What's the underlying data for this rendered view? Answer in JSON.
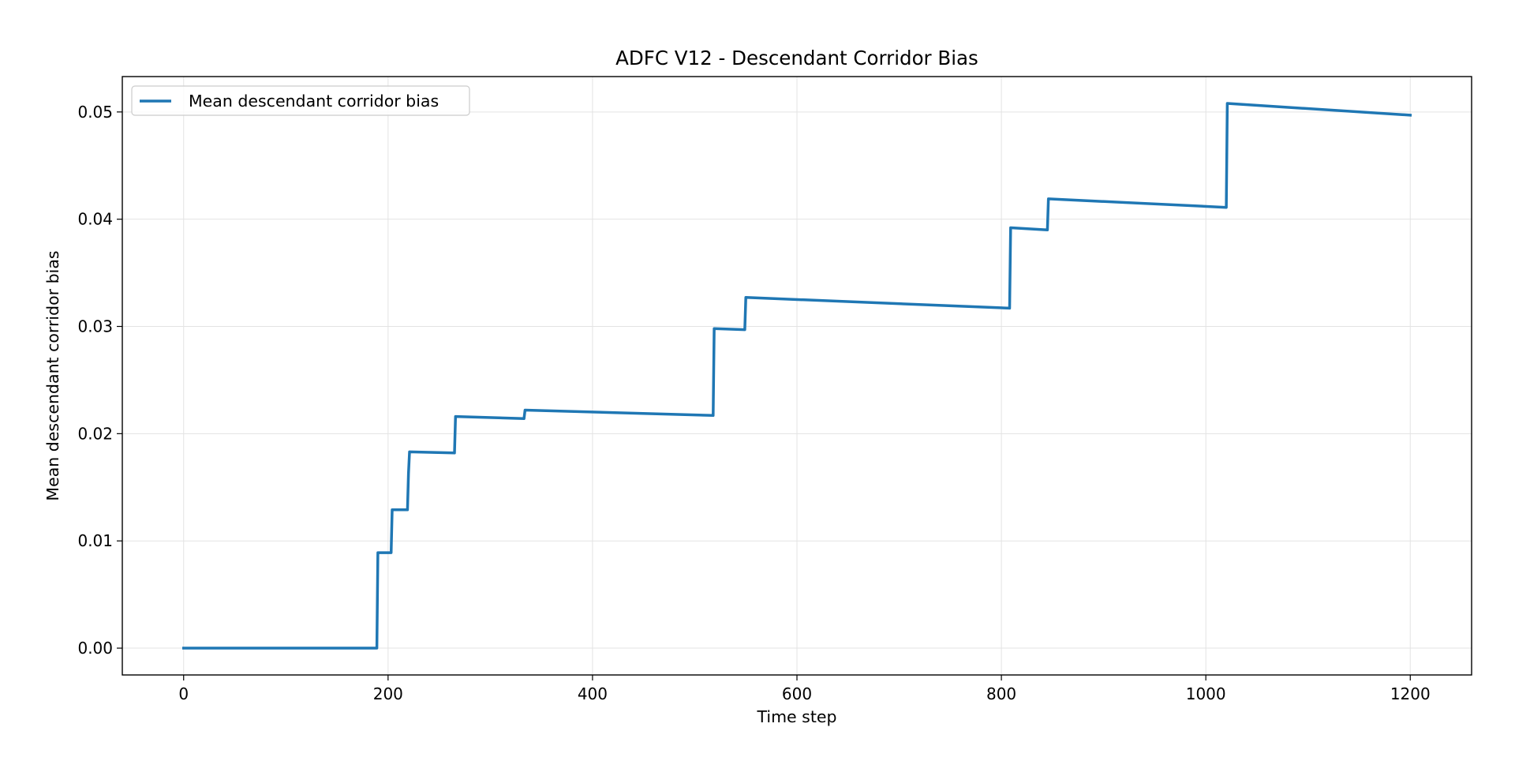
{
  "chart_data": {
    "type": "line",
    "title": "ADFC V12 - Descendant Corridor Bias",
    "xlabel": "Time step",
    "ylabel": "Mean descendant corridor bias",
    "xlim": [
      -60,
      1260
    ],
    "ylim": [
      -0.0025,
      0.0533
    ],
    "xticks": [
      0,
      200,
      400,
      600,
      800,
      1000,
      1200
    ],
    "xtick_labels": [
      "0",
      "200",
      "400",
      "600",
      "800",
      "1000",
      "1200"
    ],
    "yticks": [
      0.0,
      0.01,
      0.02,
      0.03,
      0.04,
      0.05
    ],
    "ytick_labels": [
      "0.00",
      "0.01",
      "0.02",
      "0.03",
      "0.04",
      "0.05"
    ],
    "grid": true,
    "legend_position": "top-left",
    "series": [
      {
        "name": "Mean descendant corridor bias",
        "color": "#1f77b4",
        "x": [
          0,
          189,
          190,
          203,
          204,
          219,
          220,
          221,
          265,
          266,
          333,
          334,
          518,
          519,
          549,
          550,
          808,
          809,
          845,
          846,
          1020,
          1021,
          1200
        ],
        "y": [
          0.0,
          0.0,
          0.0089,
          0.0089,
          0.0129,
          0.0129,
          0.0163,
          0.0183,
          0.0182,
          0.0216,
          0.0214,
          0.0222,
          0.0217,
          0.0298,
          0.0297,
          0.0327,
          0.0317,
          0.0392,
          0.039,
          0.0419,
          0.0411,
          0.0508,
          0.0497
        ]
      }
    ]
  }
}
